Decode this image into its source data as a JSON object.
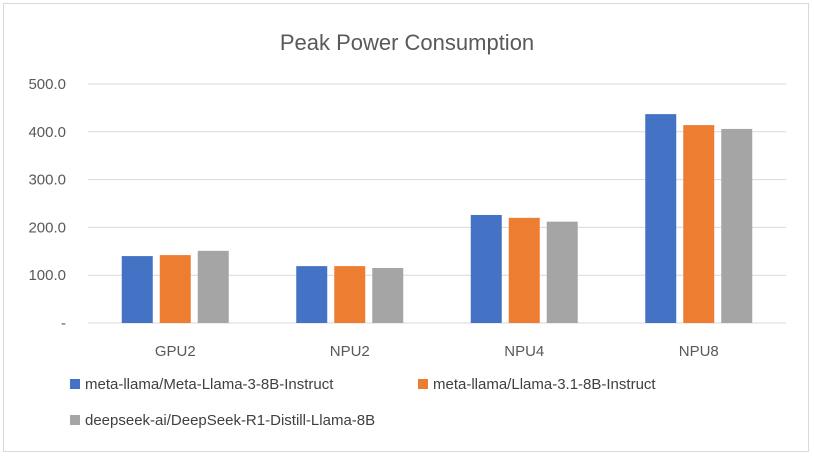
{
  "chart_data": {
    "type": "bar",
    "title": "Peak Power Consumption",
    "categories": [
      "GPU2",
      "NPU2",
      "NPU4",
      "NPU8"
    ],
    "series": [
      {
        "name": "meta-llama/Meta-Llama-3-8B-Instruct",
        "color": "#4472c4",
        "values": [
          140,
          119,
          226,
          437
        ]
      },
      {
        "name": "meta-llama/Llama-3.1-8B-Instruct",
        "color": "#ed7d31",
        "values": [
          142,
          119,
          220,
          414
        ]
      },
      {
        "name": "deepseek-ai/DeepSeek-R1-Distill-Llama-8B",
        "color": "#a5a5a5",
        "values": [
          151,
          115,
          212,
          406
        ]
      }
    ],
    "y_ticks": [
      {
        "value": 0,
        "label": "-"
      },
      {
        "value": 100,
        "label": "100.0"
      },
      {
        "value": 200,
        "label": "200.0"
      },
      {
        "value": 300,
        "label": "300.0"
      },
      {
        "value": 400,
        "label": "400.0"
      },
      {
        "value": 500,
        "label": "500.0"
      }
    ],
    "ylim": [
      0,
      500
    ],
    "xlabel": "",
    "ylabel": "",
    "grid": true,
    "legend_position": "bottom"
  }
}
